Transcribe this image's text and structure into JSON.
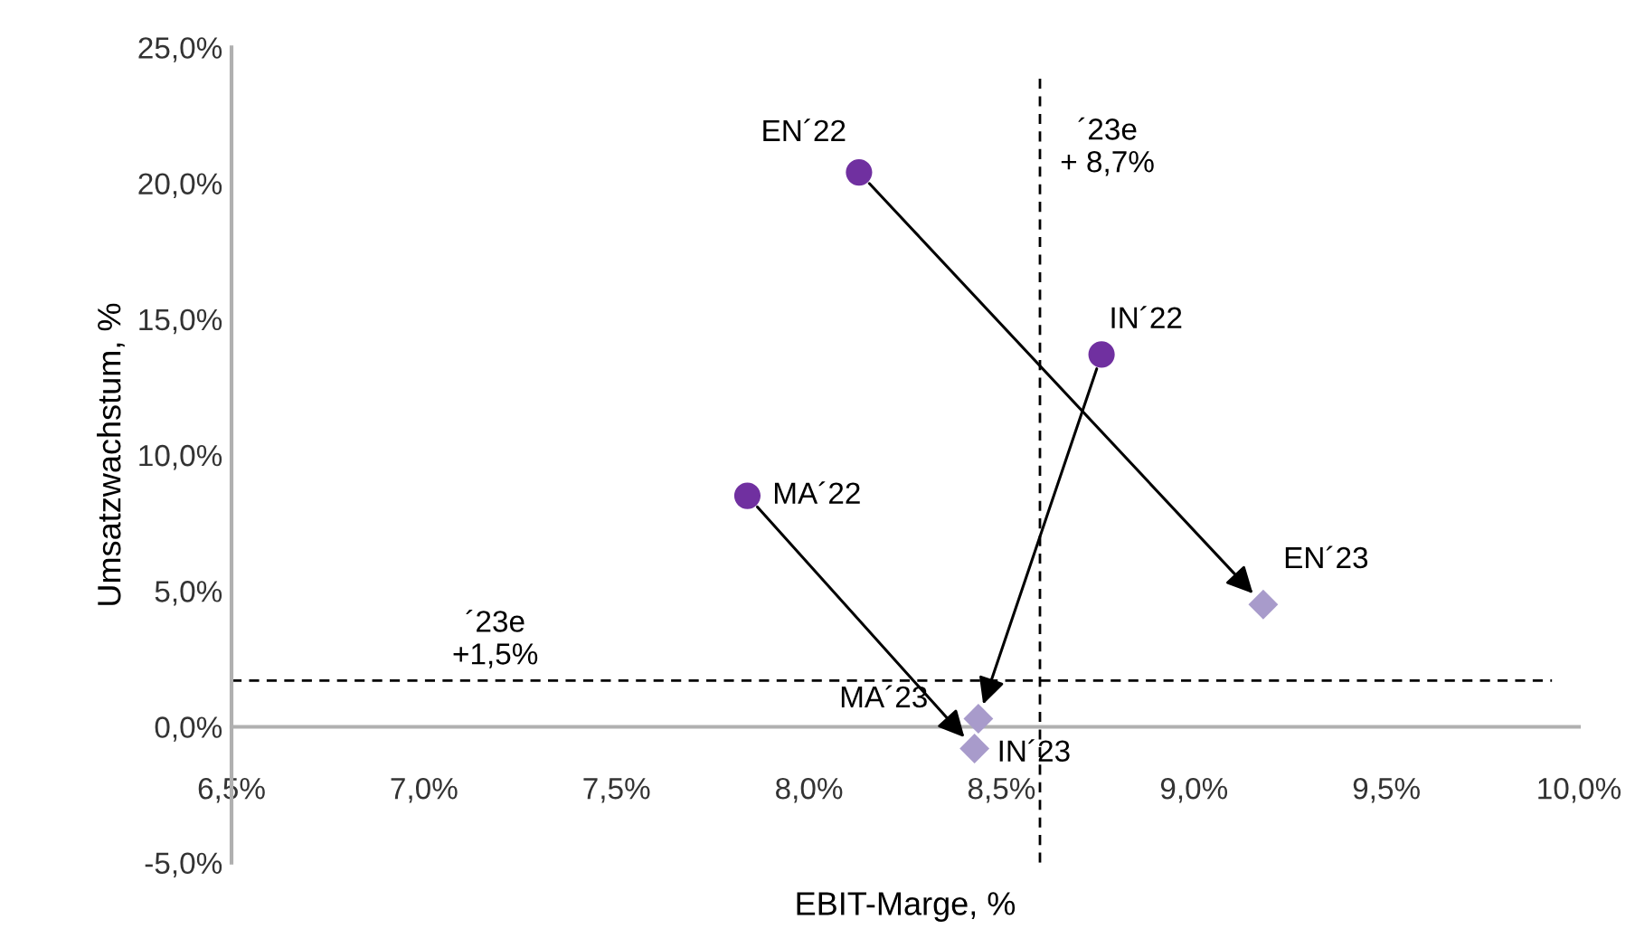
{
  "chart_data": {
    "type": "scatter",
    "xlabel": "EBIT-Marge, %",
    "ylabel": "Umsatzwachstum, %",
    "series": [
      {
        "color": "#7030a0",
        "marker": "circle",
        "x": [
          8.13,
          8.76,
          7.84
        ],
        "values": [
          20.4,
          13.7,
          8.5
        ]
      },
      {
        "color": "#a89bcb",
        "marker": "diamond",
        "x": [
          9.18,
          8.44,
          8.43
        ],
        "values": [
          4.5,
          0.3,
          -0.8
        ]
      }
    ],
    "annotations": [
      {
        "text": "EN´22",
        "x": 8.13,
        "y": 20.4
      },
      {
        "text": "IN´22",
        "x": 8.76,
        "y": 13.7
      },
      {
        "text": "MA´22",
        "x": 7.84,
        "y": 8.5
      },
      {
        "text": "EN´23",
        "x": 9.18,
        "y": 4.5
      },
      {
        "text": "MA´23",
        "x": 8.44,
        "y": 0.3
      },
      {
        "text": "IN´23",
        "x": 8.43,
        "y": -0.8
      }
    ],
    "ref_lines": [
      {
        "axis": "x",
        "value": 8.6,
        "label": "´23e\n+ 8,7%",
        "color": "#000000",
        "line_style": "dashed"
      },
      {
        "axis": "y",
        "value": 1.7,
        "label": "´23e\n+1,5%",
        "color": "#000000",
        "line_style": "dashed"
      }
    ],
    "xlim": [
      6.5,
      10.0
    ],
    "xticks": [
      {
        "value": 6.5,
        "label": "6,5%"
      },
      {
        "value": 7.0,
        "label": "7,0%"
      },
      {
        "value": 7.5,
        "label": "7,5%"
      },
      {
        "value": 8.0,
        "label": "8,0%"
      },
      {
        "value": 8.5,
        "label": "8,5%"
      },
      {
        "value": 9.0,
        "label": "9,0%"
      },
      {
        "value": 9.5,
        "label": "9,5%"
      },
      {
        "value": 10.0,
        "label": "10,0%"
      }
    ],
    "ylim": [
      -5,
      25
    ],
    "yticks": [
      {
        "value": -5,
        "label": "-5,0%"
      },
      {
        "value": 0,
        "label": "0,0%"
      },
      {
        "value": 5,
        "label": "5,0%"
      },
      {
        "value": 10,
        "label": "10,0%"
      },
      {
        "value": 15,
        "label": "15,0%"
      },
      {
        "value": 20,
        "label": "20,0%"
      },
      {
        "value": 25,
        "label": "25,0%"
      }
    ],
    "grid": false
  }
}
